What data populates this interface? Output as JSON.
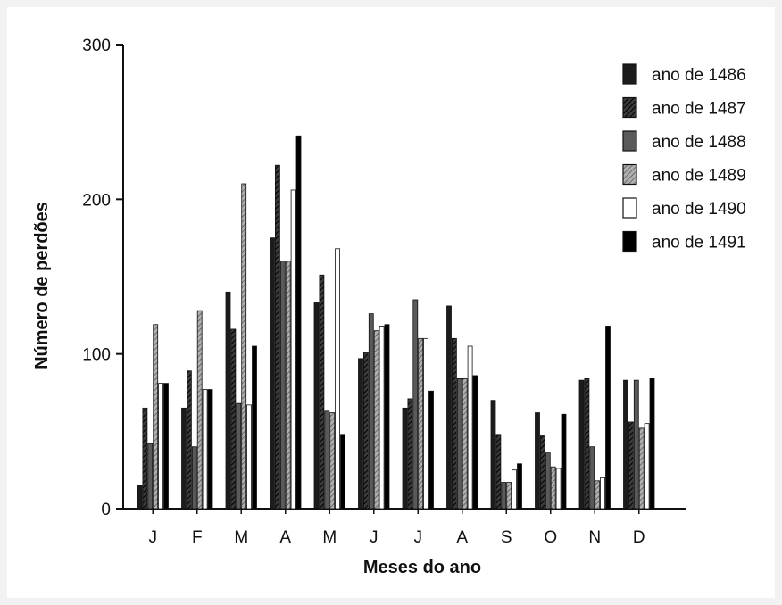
{
  "chart_data": {
    "type": "bar",
    "title": "",
    "xlabel": "Meses do ano",
    "ylabel": "Número de perdões",
    "ylim": [
      0,
      300
    ],
    "yticks": [
      "0",
      "100",
      "200",
      "300"
    ],
    "categories": [
      "J",
      "F",
      "M",
      "A",
      "M",
      "J",
      "J",
      "A",
      "S",
      "O",
      "N",
      "D"
    ],
    "legend_position": "top-right",
    "grid": false,
    "series": [
      {
        "name": "ano de 1486",
        "pattern": "solid-dark",
        "color": "#151515",
        "values": [
          15,
          65,
          140,
          175,
          133,
          97,
          65,
          131,
          70,
          62,
          83,
          83
        ]
      },
      {
        "name": "ano de 1487",
        "pattern": "hatch-dark",
        "color": "#2a2a2a",
        "values": [
          65,
          89,
          116,
          222,
          151,
          101,
          71,
          110,
          48,
          47,
          84,
          56
        ]
      },
      {
        "name": "ano de 1488",
        "pattern": "solid-gray",
        "color": "#555555",
        "values": [
          42,
          40,
          68,
          160,
          63,
          126,
          135,
          84,
          17,
          36,
          40,
          83
        ]
      },
      {
        "name": "ano de 1489",
        "pattern": "hatch-light",
        "color": "#888888",
        "values": [
          119,
          128,
          210,
          160,
          62,
          115,
          110,
          84,
          17,
          27,
          18,
          52
        ]
      },
      {
        "name": "ano de 1490",
        "pattern": "white",
        "color": "#ffffff",
        "values": [
          81,
          77,
          67,
          206,
          168,
          118,
          110,
          105,
          25,
          26,
          20,
          55
        ]
      },
      {
        "name": "ano de 1491",
        "pattern": "solid-black",
        "color": "#000000",
        "values": [
          81,
          77,
          105,
          241,
          48,
          119,
          76,
          86,
          29,
          61,
          118,
          84
        ]
      }
    ]
  }
}
